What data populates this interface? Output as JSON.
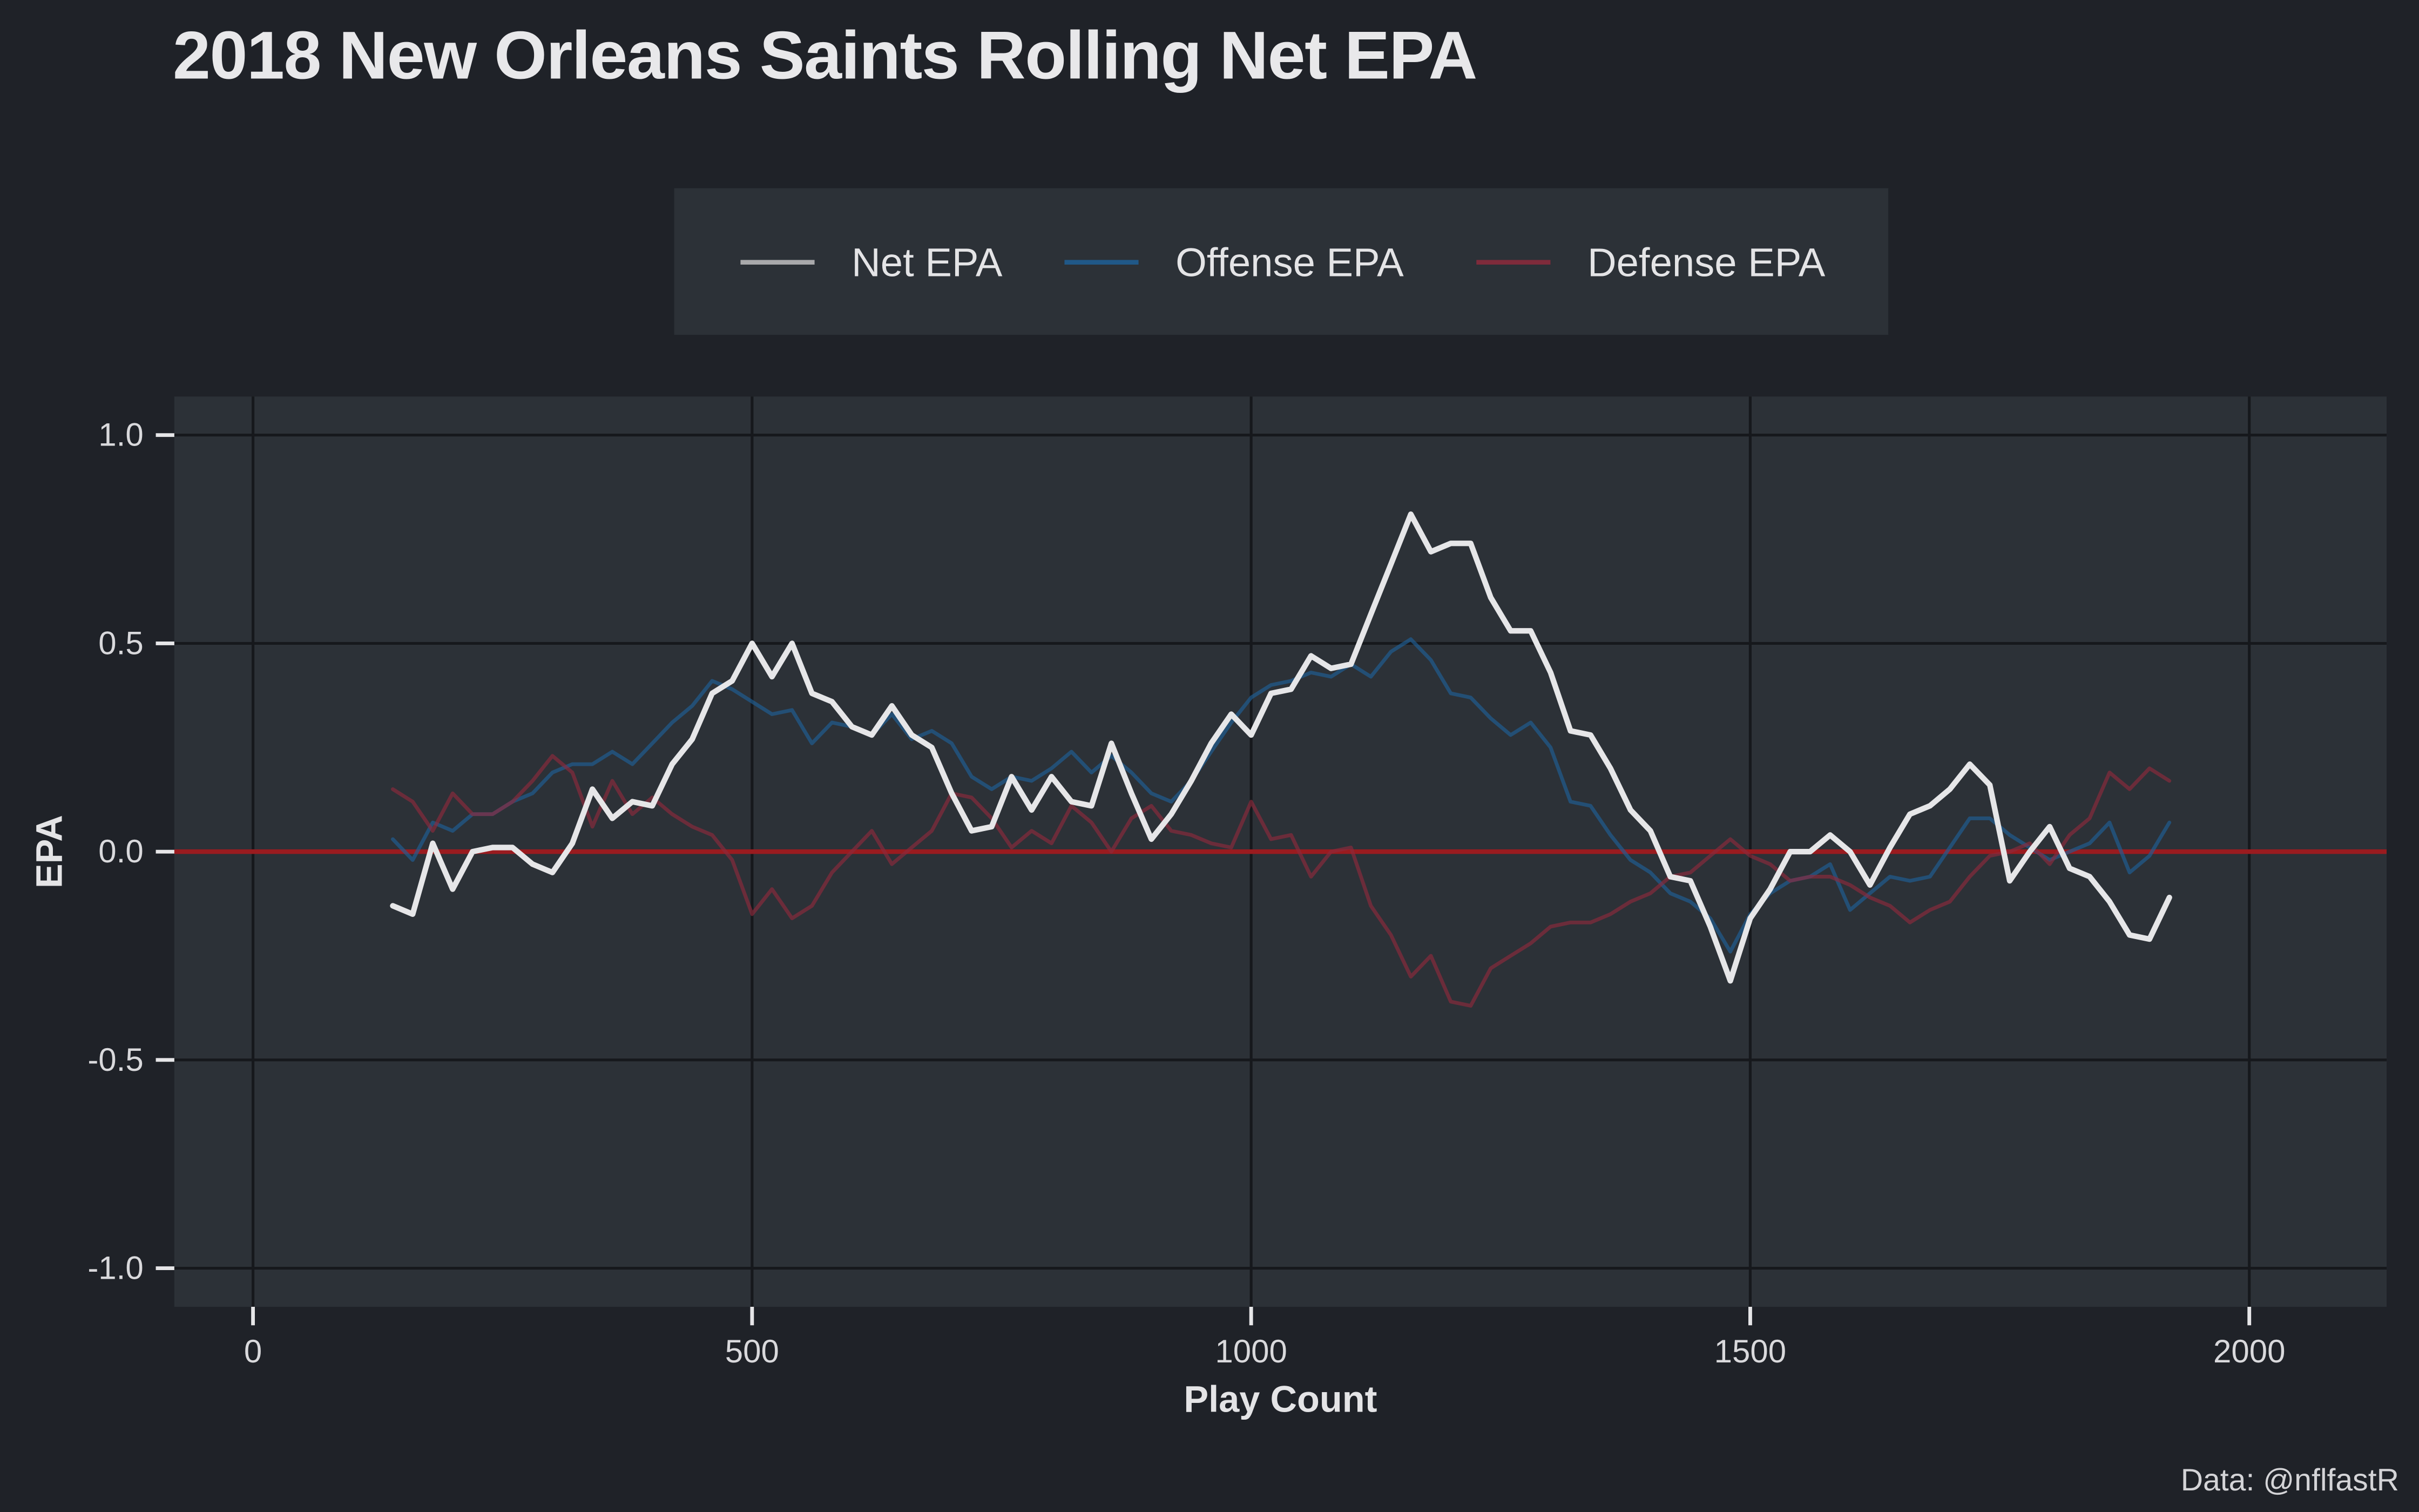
{
  "chart_data": {
    "type": "line",
    "title": "2018 New Orleans Saints Rolling Net EPA",
    "xlabel": "Play Count",
    "ylabel": "EPA",
    "xlim": [
      -80,
      2140
    ],
    "ylim": [
      -1.1,
      1.1
    ],
    "xticks": [
      0,
      500,
      1000,
      1500,
      2000
    ],
    "xtick_labels": [
      "0",
      "500",
      "1000",
      "1500",
      "2000"
    ],
    "yticks": [
      1.0,
      0.5,
      0.0,
      -0.5,
      -1.0
    ],
    "ytick_labels": [
      "1.0",
      "0.5",
      "0.0",
      "-0.5",
      "-1.0"
    ],
    "grid": true,
    "legend_position": "top",
    "reference_line": {
      "y": 0,
      "color": "#9a1b1f"
    },
    "caption": "Data: @nflfastR",
    "x": [
      140,
      160,
      180,
      200,
      220,
      240,
      260,
      280,
      300,
      320,
      340,
      360,
      380,
      400,
      420,
      440,
      460,
      480,
      500,
      520,
      540,
      560,
      580,
      600,
      620,
      640,
      660,
      680,
      700,
      720,
      740,
      760,
      780,
      800,
      820,
      840,
      860,
      880,
      900,
      920,
      940,
      960,
      980,
      1000,
      1020,
      1040,
      1060,
      1080,
      1100,
      1120,
      1140,
      1160,
      1180,
      1200,
      1220,
      1240,
      1260,
      1280,
      1300,
      1320,
      1340,
      1360,
      1380,
      1400,
      1420,
      1440,
      1460,
      1480,
      1500,
      1520,
      1540,
      1560,
      1580,
      1600,
      1620,
      1640,
      1660,
      1680,
      1700,
      1720,
      1740,
      1760,
      1780,
      1800,
      1820,
      1840,
      1860,
      1880,
      1900,
      1920
    ],
    "series": [
      {
        "name": "Offense EPA",
        "color": "#1f5f96",
        "opacity": 0.65,
        "width": 2.4,
        "values": [
          0.03,
          -0.02,
          0.07,
          0.05,
          0.09,
          0.09,
          0.12,
          0.14,
          0.19,
          0.21,
          0.21,
          0.24,
          0.21,
          0.26,
          0.31,
          0.35,
          0.41,
          0.39,
          0.36,
          0.33,
          0.34,
          0.26,
          0.31,
          0.3,
          0.28,
          0.33,
          0.27,
          0.29,
          0.26,
          0.18,
          0.15,
          0.18,
          0.17,
          0.2,
          0.24,
          0.19,
          0.23,
          0.19,
          0.14,
          0.12,
          0.17,
          0.24,
          0.31,
          0.37,
          0.4,
          0.41,
          0.43,
          0.42,
          0.45,
          0.42,
          0.48,
          0.51,
          0.46,
          0.38,
          0.37,
          0.32,
          0.28,
          0.31,
          0.25,
          0.12,
          0.11,
          0.04,
          -0.02,
          -0.05,
          -0.1,
          -0.12,
          -0.16,
          -0.24,
          -0.15,
          -0.1,
          -0.07,
          -0.06,
          -0.03,
          -0.14,
          -0.1,
          -0.06,
          -0.07,
          -0.06,
          0.01,
          0.08,
          0.08,
          0.04,
          0.01,
          -0.02,
          0.0,
          0.02,
          0.07,
          -0.05,
          -0.01,
          0.07
        ]
      },
      {
        "name": "Defense EPA",
        "color": "#8e2a3c",
        "opacity": 0.65,
        "width": 2.4,
        "values": [
          0.15,
          0.12,
          0.05,
          0.14,
          0.09,
          0.09,
          0.12,
          0.17,
          0.23,
          0.19,
          0.06,
          0.17,
          0.09,
          0.13,
          0.09,
          0.06,
          0.04,
          -0.02,
          -0.15,
          -0.09,
          -0.16,
          -0.13,
          -0.05,
          0.0,
          0.05,
          -0.03,
          0.01,
          0.05,
          0.14,
          0.13,
          0.08,
          0.01,
          0.05,
          0.02,
          0.11,
          0.07,
          0.0,
          0.08,
          0.11,
          0.05,
          0.04,
          0.02,
          0.01,
          0.12,
          0.03,
          0.04,
          -0.06,
          0.0,
          0.01,
          -0.13,
          -0.2,
          -0.3,
          -0.25,
          -0.36,
          -0.37,
          -0.28,
          -0.25,
          -0.22,
          -0.18,
          -0.17,
          -0.17,
          -0.15,
          -0.12,
          -0.1,
          -0.06,
          -0.05,
          -0.01,
          0.03,
          -0.01,
          -0.03,
          -0.07,
          -0.06,
          -0.06,
          -0.08,
          -0.11,
          -0.13,
          -0.17,
          -0.14,
          -0.12,
          -0.06,
          -0.01,
          0.0,
          0.02,
          -0.03,
          0.04,
          0.08,
          0.19,
          0.15,
          0.2,
          0.17
        ]
      },
      {
        "name": "Net EPA",
        "color": "#e6e6e8",
        "legend_color": "#a9a9ab",
        "opacity": 1,
        "width": 3.6,
        "values": [
          -0.13,
          -0.15,
          0.02,
          -0.09,
          0.0,
          0.01,
          0.01,
          -0.03,
          -0.05,
          0.02,
          0.15,
          0.08,
          0.12,
          0.11,
          0.21,
          0.27,
          0.38,
          0.41,
          0.5,
          0.42,
          0.5,
          0.38,
          0.36,
          0.3,
          0.28,
          0.35,
          0.28,
          0.25,
          0.14,
          0.05,
          0.06,
          0.18,
          0.1,
          0.18,
          0.12,
          0.11,
          0.26,
          0.14,
          0.03,
          0.09,
          0.17,
          0.26,
          0.33,
          0.28,
          0.38,
          0.39,
          0.47,
          0.44,
          0.45,
          0.57,
          0.69,
          0.81,
          0.72,
          0.74,
          0.74,
          0.61,
          0.53,
          0.53,
          0.43,
          0.29,
          0.28,
          0.2,
          0.1,
          0.05,
          -0.06,
          -0.07,
          -0.18,
          -0.31,
          -0.16,
          -0.09,
          0.0,
          0.0,
          0.04,
          0.0,
          -0.08,
          0.01,
          0.09,
          0.11,
          0.15,
          0.21,
          0.16,
          -0.07,
          0.0,
          0.06,
          -0.04,
          -0.06,
          -0.12,
          -0.2,
          -0.21,
          -0.11
        ]
      }
    ],
    "legend_order": [
      "Net EPA",
      "Offense EPA",
      "Defense EPA"
    ]
  }
}
